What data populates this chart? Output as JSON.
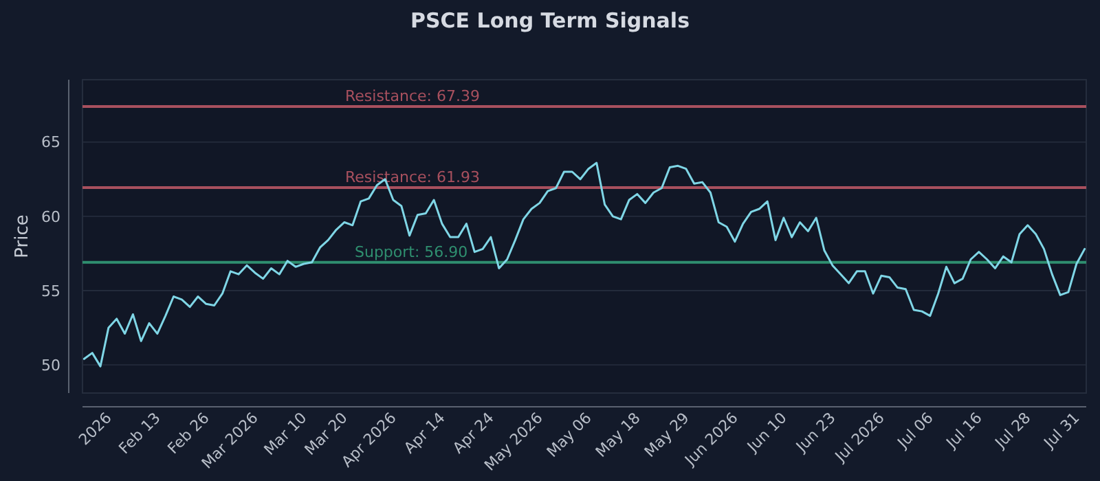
{
  "chart_data": {
    "type": "line",
    "title": "PSCE Long Term Signals",
    "ylabel": "Price",
    "categories": [
      null,
      null,
      null,
      "2026",
      null,
      null,
      null,
      null,
      null,
      "Feb 13",
      null,
      null,
      null,
      null,
      null,
      "Feb 26",
      null,
      null,
      null,
      null,
      null,
      "Mar 2026",
      null,
      null,
      null,
      null,
      null,
      "Mar 10",
      null,
      null,
      null,
      null,
      "Mar 20",
      null,
      null,
      null,
      null,
      null,
      "Apr 2026",
      null,
      null,
      null,
      null,
      null,
      "Apr 14",
      null,
      null,
      null,
      null,
      null,
      "Apr 24",
      null,
      null,
      null,
      null,
      null,
      "May 2026",
      null,
      null,
      null,
      null,
      null,
      "May 06",
      null,
      null,
      null,
      null,
      null,
      "May 18",
      null,
      null,
      null,
      null,
      null,
      "May 29",
      null,
      null,
      null,
      null,
      null,
      "Jun 2026",
      null,
      null,
      null,
      null,
      null,
      "Jun 10",
      null,
      null,
      null,
      null,
      null,
      "Jun 23",
      null,
      null,
      null,
      null,
      null,
      "Jul 2026",
      null,
      null,
      null,
      null,
      null,
      "Jul 06",
      null,
      null,
      null,
      null,
      null,
      "Jul 16",
      null,
      null,
      null,
      null,
      null,
      "Jul 28",
      null,
      null,
      null,
      null,
      null,
      "Jul 31",
      null
    ],
    "series": [
      {
        "color": "#7fd6e6",
        "values": [
          50.4,
          50.8,
          49.9,
          52.5,
          53.1,
          52.1,
          53.4,
          51.6,
          52.8,
          52.1,
          53.3,
          54.6,
          54.4,
          53.9,
          54.6,
          54.1,
          54.0,
          54.8,
          56.3,
          56.1,
          56.7,
          56.2,
          55.8,
          56.5,
          56.1,
          57.0,
          56.6,
          56.8,
          56.9,
          57.9,
          58.4,
          59.1,
          59.6,
          59.4,
          61.0,
          61.2,
          62.1,
          62.5,
          61.1,
          60.7,
          58.7,
          60.1,
          60.2,
          61.1,
          59.5,
          58.6,
          58.6,
          59.5,
          57.6,
          57.8,
          58.6,
          56.5,
          57.1,
          58.4,
          59.8,
          60.5,
          60.9,
          61.7,
          61.9,
          63.0,
          63.0,
          62.5,
          63.2,
          63.6,
          60.8,
          60.0,
          59.8,
          61.1,
          61.5,
          60.9,
          61.6,
          61.9,
          63.3,
          63.4,
          63.2,
          62.2,
          62.3,
          61.6,
          59.6,
          59.3,
          58.3,
          59.5,
          60.3,
          60.5,
          61.0,
          58.4,
          59.9,
          58.6,
          59.6,
          59.0,
          59.9,
          57.7,
          56.7,
          56.1,
          55.5,
          56.3,
          56.3,
          54.8,
          56.0,
          55.9,
          55.2,
          55.1,
          53.7,
          53.6,
          53.3,
          54.8,
          56.6,
          55.5,
          55.8,
          57.1,
          57.6,
          57.1,
          56.5,
          57.3,
          56.9,
          58.8,
          59.4,
          58.8,
          57.8,
          56.1,
          54.7,
          54.9,
          56.8,
          57.8
        ]
      }
    ],
    "ylim": [
      48.1,
      69.2
    ],
    "yticks": [
      50,
      55,
      60,
      65
    ],
    "grid": "y",
    "ref_lines": [
      {
        "axis": "y",
        "value": 67.39,
        "label": "Resistance: 67.39",
        "color": "#a8505e"
      },
      {
        "axis": "y",
        "value": 61.93,
        "label": "Resistance: 61.93",
        "color": "#a8505e"
      },
      {
        "axis": "y",
        "value": 56.9,
        "label": "Support: 56.90",
        "color": "#2f8f6f"
      }
    ]
  }
}
